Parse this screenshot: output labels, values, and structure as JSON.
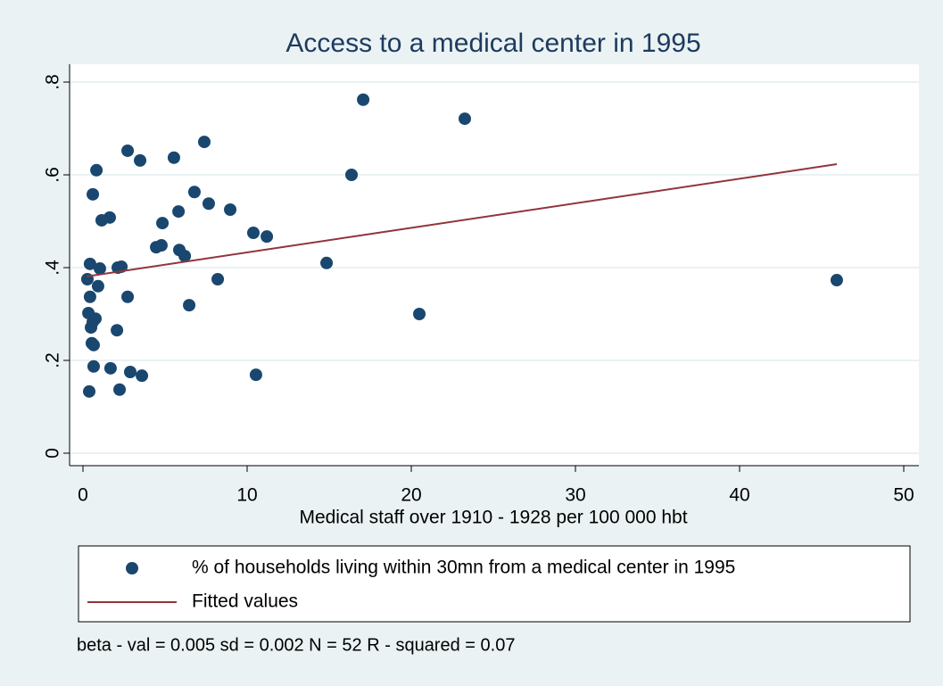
{
  "chart_data": {
    "type": "scatter",
    "title": "Access to a medical center in 1995",
    "x_label": "Medical staff over 1910 - 1928 per 100 000 hbt",
    "note": "beta - val = 0.005 sd = 0.002 N = 52 R - squared = 0.07",
    "xlim": [
      0,
      50
    ],
    "xticks": [
      0,
      10,
      20,
      30,
      40,
      50
    ],
    "ylim": [
      0,
      0.8
    ],
    "yticks": [
      0,
      {
        "value": 0.2,
        "label": ".2"
      },
      {
        "value": 0.4,
        "label": ".4"
      },
      {
        "value": 0.6,
        "label": ".6"
      },
      {
        "value": 0.8,
        "label": ".8"
      }
    ],
    "grid": true,
    "series": [
      {
        "name": "% of households living within 30mn from a medical center in 1995",
        "color": "#1a476f",
        "mode": "markers",
        "x": [
          17.07,
          23.26,
          7.39,
          2.72,
          3.48,
          5.54,
          0.82,
          16.36,
          6.79,
          0.6,
          7.66,
          8.97,
          5.82,
          1.63,
          1.14,
          4.84,
          10.38,
          11.2,
          4.78,
          4.46,
          5.87,
          6.2,
          14.84,
          0.43,
          1.03,
          2.34,
          2.12,
          0.27,
          8.21,
          45.92,
          0.92,
          0.43,
          2.72,
          6.47,
          0.33,
          20.49,
          0.76,
          0.6,
          0.49,
          2.07,
          0.54,
          0.65,
          0.65,
          1.68,
          2.88,
          3.59,
          10.54,
          0.38,
          2.23
        ],
        "values": [
          0.762,
          0.721,
          0.671,
          0.652,
          0.631,
          0.637,
          0.61,
          0.6,
          0.563,
          0.558,
          0.538,
          0.525,
          0.521,
          0.508,
          0.502,
          0.496,
          0.475,
          0.467,
          0.448,
          0.444,
          0.438,
          0.425,
          0.41,
          0.408,
          0.398,
          0.402,
          0.4,
          0.375,
          0.375,
          0.373,
          0.36,
          0.337,
          0.337,
          0.319,
          0.302,
          0.3,
          0.29,
          0.283,
          0.271,
          0.265,
          0.237,
          0.233,
          0.187,
          0.183,
          0.175,
          0.167,
          0.169,
          0.133,
          0.137
        ]
      },
      {
        "name": "Fitted values",
        "color": "#90353b",
        "mode": "line",
        "x": [
          0.22,
          45.92
        ],
        "values": [
          0.381,
          0.623
        ]
      }
    ]
  }
}
